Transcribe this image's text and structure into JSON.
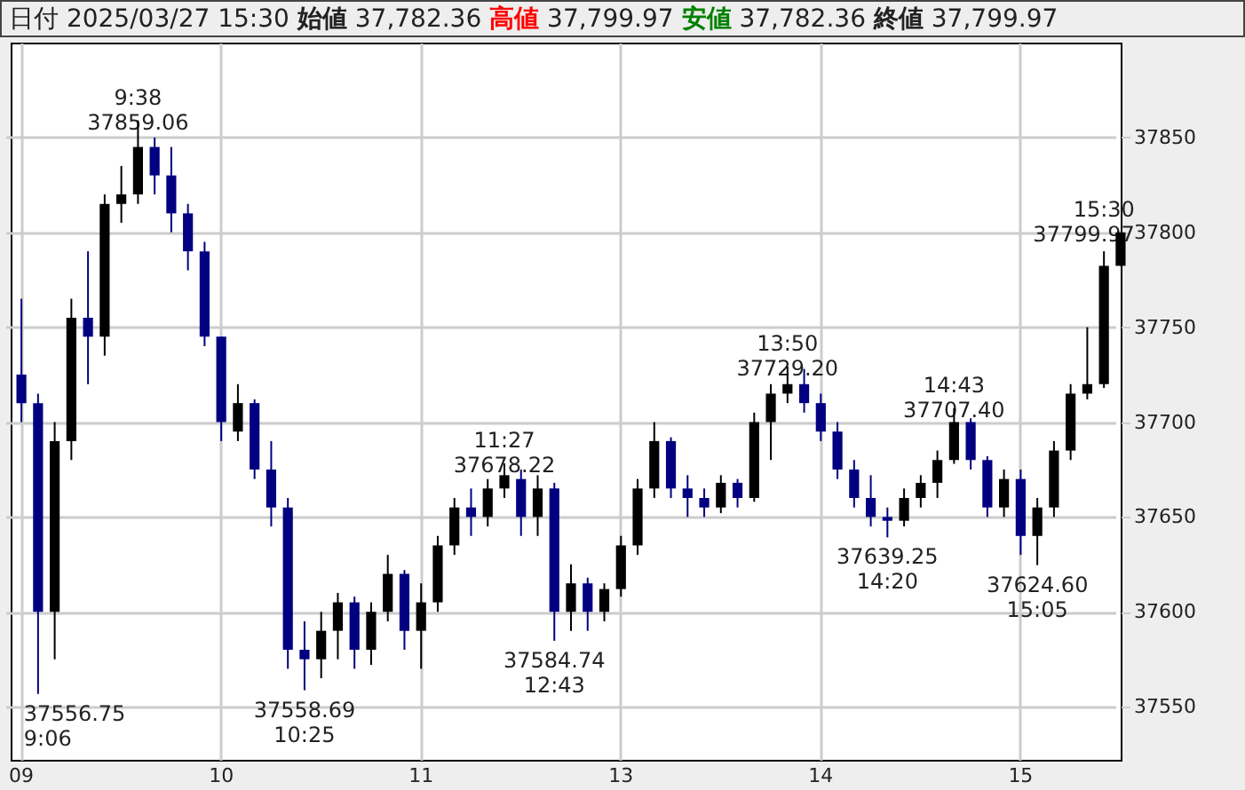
{
  "chart_data": {
    "type": "candlestick",
    "title": "日付 2025/03/27 15:30 始値 37,782.36 高値 37,799.97 安値 37,782.36 終値 37,799.97",
    "categories": [
      "09",
      null,
      null,
      null,
      null,
      null,
      null,
      null,
      null,
      null,
      null,
      null,
      "10",
      null,
      null,
      null,
      null,
      null,
      null,
      null,
      null,
      null,
      null,
      null,
      "11",
      null,
      null,
      null,
      null,
      null,
      null,
      null,
      null,
      null,
      null,
      null,
      "13",
      null,
      null,
      null,
      null,
      null,
      null,
      null,
      null,
      null,
      null,
      null,
      "14",
      null,
      null,
      null,
      null,
      null,
      null,
      null,
      null,
      null,
      null,
      null,
      "15",
      null,
      null,
      null,
      null,
      null,
      null
    ],
    "ohlc": [
      [
        37725,
        37765,
        37700,
        37710
      ],
      [
        37710,
        37715,
        37556.75,
        37600
      ],
      [
        37600,
        37700,
        37575,
        37690
      ],
      [
        37690,
        37765,
        37680,
        37755
      ],
      [
        37755,
        37790,
        37720,
        37745
      ],
      [
        37745,
        37820,
        37735,
        37815
      ],
      [
        37815,
        37835,
        37805,
        37820
      ],
      [
        37820,
        37859.06,
        37815,
        37845
      ],
      [
        37845,
        37850,
        37820,
        37830
      ],
      [
        37830,
        37845,
        37800,
        37810
      ],
      [
        37810,
        37815,
        37780,
        37790
      ],
      [
        37790,
        37795,
        37740,
        37745
      ],
      [
        37745,
        37745,
        37690,
        37700
      ],
      [
        37695,
        37720,
        37690,
        37710
      ],
      [
        37710,
        37712,
        37670,
        37675
      ],
      [
        37675,
        37690,
        37645,
        37655
      ],
      [
        37655,
        37660,
        37570,
        37580
      ],
      [
        37580,
        37595,
        37558.69,
        37575
      ],
      [
        37575,
        37600,
        37565,
        37590
      ],
      [
        37590,
        37610,
        37575,
        37605
      ],
      [
        37605,
        37608,
        37570,
        37580
      ],
      [
        37580,
        37605,
        37572,
        37600
      ],
      [
        37600,
        37630,
        37595,
        37620
      ],
      [
        37620,
        37622,
        37580,
        37590
      ],
      [
        37590,
        37615,
        37570,
        37605
      ],
      [
        37605,
        37640,
        37600,
        37635
      ],
      [
        37635,
        37660,
        37630,
        37655
      ],
      [
        37655,
        37665,
        37640,
        37650
      ],
      [
        37650,
        37670,
        37645,
        37665
      ],
      [
        37665,
        37678.22,
        37660,
        37672
      ],
      [
        37670,
        37675,
        37640,
        37650
      ],
      [
        37650,
        37672,
        37640,
        37665
      ],
      [
        37665,
        37668,
        37584.74,
        37600
      ],
      [
        37600,
        37625,
        37590,
        37615
      ],
      [
        37615,
        37618,
        37590,
        37600
      ],
      [
        37600,
        37615,
        37595,
        37612
      ],
      [
        37612,
        37640,
        37608,
        37635
      ],
      [
        37635,
        37670,
        37630,
        37665
      ],
      [
        37665,
        37700,
        37660,
        37690
      ],
      [
        37690,
        37692,
        37660,
        37665
      ],
      [
        37665,
        37672,
        37650,
        37660
      ],
      [
        37660,
        37665,
        37650,
        37655
      ],
      [
        37655,
        37672,
        37652,
        37668
      ],
      [
        37668,
        37670,
        37655,
        37660
      ],
      [
        37660,
        37705,
        37658,
        37700
      ],
      [
        37700,
        37720,
        37680,
        37715
      ],
      [
        37715,
        37729.2,
        37710,
        37720
      ],
      [
        37720,
        37728,
        37705,
        37710
      ],
      [
        37710,
        37715,
        37690,
        37695
      ],
      [
        37695,
        37700,
        37670,
        37675
      ],
      [
        37675,
        37680,
        37655,
        37660
      ],
      [
        37660,
        37672,
        37645,
        37650
      ],
      [
        37650,
        37655,
        37639.25,
        37648
      ],
      [
        37648,
        37665,
        37645,
        37660
      ],
      [
        37660,
        37672,
        37655,
        37668
      ],
      [
        37668,
        37685,
        37660,
        37680
      ],
      [
        37680,
        37707.4,
        37678,
        37700
      ],
      [
        37700,
        37702,
        37675,
        37680
      ],
      [
        37680,
        37682,
        37650,
        37655
      ],
      [
        37655,
        37675,
        37650,
        37670
      ],
      [
        37670,
        37675,
        37630,
        37640
      ],
      [
        37640,
        37660,
        37624.6,
        37655
      ],
      [
        37655,
        37690,
        37650,
        37685
      ],
      [
        37685,
        37720,
        37680,
        37715
      ],
      [
        37715,
        37750,
        37712,
        37720
      ],
      [
        37720,
        37790,
        37718,
        37782.36
      ],
      [
        37782.36,
        37799.97,
        37782.36,
        37799.97
      ]
    ],
    "colors": [
      "#000080",
      "#000080",
      "#000000",
      "#000000",
      "#000080",
      "#000000",
      "#000000",
      "#000000",
      "#000080",
      "#000080",
      "#000080",
      "#000080",
      "#000080",
      "#000000",
      "#000080",
      "#000080",
      "#000080",
      "#000080",
      "#000000",
      "#000000",
      "#000080",
      "#000000",
      "#000000",
      "#000080",
      "#000000",
      "#000000",
      "#000000",
      "#000080",
      "#000000",
      "#000000",
      "#000080",
      "#000000",
      "#000080",
      "#000000",
      "#000080",
      "#000000",
      "#000000",
      "#000000",
      "#000000",
      "#000080",
      "#000080",
      "#000080",
      "#000000",
      "#000080",
      "#000000",
      "#000000",
      "#000000",
      "#000080",
      "#000080",
      "#000080",
      "#000080",
      "#000080",
      "#000080",
      "#000000",
      "#000000",
      "#000000",
      "#000000",
      "#000080",
      "#000080",
      "#000000",
      "#000080",
      "#000000",
      "#000000",
      "#000000",
      "#000000",
      "#000000",
      "#000000"
    ],
    "ylim": [
      37522,
      37900
    ],
    "yticks": [
      37550,
      37600,
      37650,
      37700,
      37750,
      37800,
      37850
    ],
    "grid": true,
    "value_labels": [
      null,
      "37556.75\n9:06",
      null,
      null,
      null,
      null,
      null,
      "9:38\n37859.06",
      null,
      null,
      null,
      null,
      null,
      null,
      null,
      null,
      null,
      "37558.69\n10:25",
      null,
      null,
      null,
      null,
      null,
      null,
      null,
      null,
      null,
      null,
      null,
      "11:27\n37678.22",
      null,
      null,
      "37584.74\n12:43",
      null,
      null,
      null,
      null,
      null,
      null,
      null,
      null,
      null,
      null,
      null,
      null,
      null,
      "13:50\n37729.20",
      null,
      null,
      null,
      null,
      null,
      "37639.25\n14:20",
      null,
      null,
      null,
      "14:43\n37707.40",
      null,
      null,
      null,
      null,
      "37624.60\n15:05",
      null,
      null,
      null,
      null,
      "15:30\n37799.97"
    ]
  }
}
